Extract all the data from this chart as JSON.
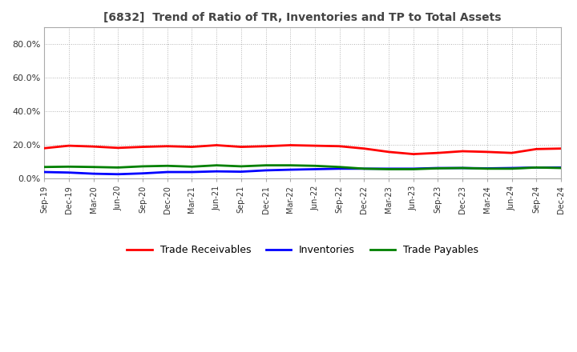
{
  "title": "[6832]  Trend of Ratio of TR, Inventories and TP to Total Assets",
  "xlabels": [
    "Sep-19",
    "Dec-19",
    "Mar-20",
    "Jun-20",
    "Sep-20",
    "Dec-20",
    "Mar-21",
    "Jun-21",
    "Sep-21",
    "Dec-21",
    "Mar-22",
    "Jun-22",
    "Sep-22",
    "Dec-22",
    "Mar-23",
    "Jun-23",
    "Sep-23",
    "Dec-23",
    "Mar-24",
    "Jun-24",
    "Sep-24",
    "Dec-24"
  ],
  "trade_receivables": [
    0.18,
    0.195,
    0.19,
    0.182,
    0.188,
    0.192,
    0.188,
    0.198,
    0.188,
    0.192,
    0.198,
    0.195,
    0.192,
    0.178,
    0.158,
    0.145,
    0.152,
    0.162,
    0.158,
    0.152,
    0.175,
    0.178
  ],
  "inventories": [
    0.038,
    0.035,
    0.028,
    0.025,
    0.03,
    0.038,
    0.038,
    0.042,
    0.04,
    0.048,
    0.052,
    0.055,
    0.058,
    0.058,
    0.058,
    0.058,
    0.062,
    0.062,
    0.06,
    0.062,
    0.065,
    0.065
  ],
  "trade_payables": [
    0.068,
    0.07,
    0.068,
    0.065,
    0.072,
    0.075,
    0.07,
    0.078,
    0.072,
    0.078,
    0.078,
    0.075,
    0.068,
    0.058,
    0.055,
    0.055,
    0.06,
    0.062,
    0.058,
    0.058,
    0.065,
    0.062
  ],
  "ylim": [
    0.0,
    0.9
  ],
  "yticks": [
    0.0,
    0.2,
    0.4,
    0.6,
    0.8
  ],
  "ytick_labels": [
    "0.0%",
    "20.0%",
    "40.0%",
    "60.0%",
    "80.0%"
  ],
  "tr_color": "#ff0000",
  "inv_color": "#0000ff",
  "tp_color": "#008000",
  "legend_labels": [
    "Trade Receivables",
    "Inventories",
    "Trade Payables"
  ],
  "background_color": "#ffffff",
  "grid_color": "#aaaaaa"
}
